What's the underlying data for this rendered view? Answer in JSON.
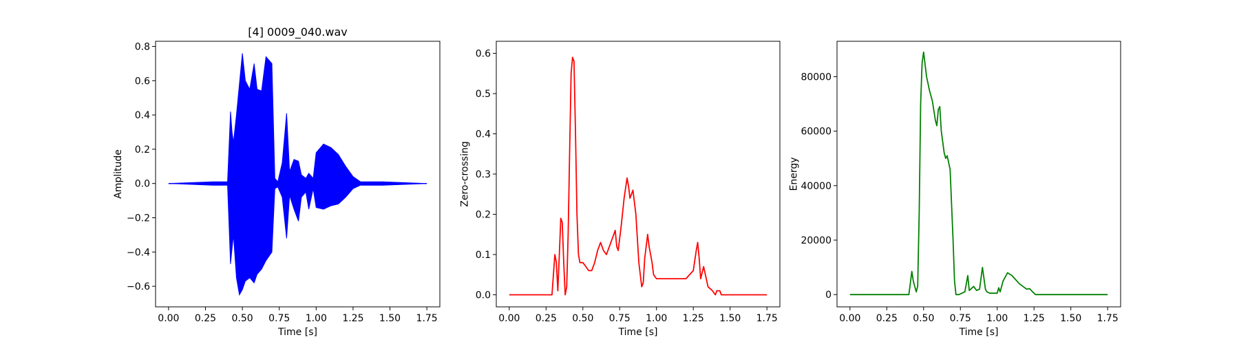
{
  "chart_data": [
    {
      "type": "line",
      "title": "[4] 0009_040.wav",
      "xlabel": "Time [s]",
      "ylabel": "Amplitude",
      "color": "#0000ff",
      "xlim": [
        -0.088,
        1.838
      ],
      "ylim": [
        -0.72,
        0.83
      ],
      "xticks": [
        0.0,
        0.25,
        0.5,
        0.75,
        1.0,
        1.25,
        1.5,
        1.75
      ],
      "xtick_labels": [
        "0.00",
        "0.25",
        "0.50",
        "0.75",
        "1.00",
        "1.25",
        "1.50",
        "1.75"
      ],
      "yticks": [
        -0.6,
        -0.4,
        -0.2,
        0.0,
        0.2,
        0.4,
        0.6,
        0.8
      ],
      "ytick_labels": [
        "−0.6",
        "−0.4",
        "−0.2",
        "0.0",
        "0.2",
        "0.4",
        "0.6",
        "0.8"
      ],
      "series": [
        {
          "style": "waveform-envelope",
          "x": [
            0.0,
            0.3,
            0.4,
            0.42,
            0.43,
            0.44,
            0.46,
            0.48,
            0.5,
            0.52,
            0.55,
            0.58,
            0.6,
            0.63,
            0.66,
            0.7,
            0.72,
            0.74,
            0.77,
            0.8,
            0.82,
            0.85,
            0.88,
            0.9,
            0.93,
            0.95,
            0.98,
            1.0,
            1.05,
            1.1,
            1.15,
            1.2,
            1.25,
            1.3,
            1.35,
            1.45,
            1.75
          ],
          "upper": [
            0.0,
            0.01,
            0.01,
            0.42,
            0.3,
            0.24,
            0.4,
            0.58,
            0.76,
            0.6,
            0.55,
            0.7,
            0.55,
            0.54,
            0.74,
            0.7,
            0.03,
            0.01,
            0.12,
            0.41,
            0.07,
            0.14,
            0.13,
            0.05,
            0.03,
            0.06,
            0.03,
            0.18,
            0.23,
            0.21,
            0.17,
            0.1,
            0.04,
            0.01,
            0.01,
            0.01,
            0.0
          ],
          "lower": [
            0.0,
            -0.01,
            -0.01,
            -0.47,
            -0.38,
            -0.3,
            -0.55,
            -0.65,
            -0.62,
            -0.57,
            -0.55,
            -0.58,
            -0.53,
            -0.5,
            -0.45,
            -0.4,
            -0.03,
            -0.02,
            -0.08,
            -0.32,
            -0.07,
            -0.15,
            -0.22,
            -0.08,
            -0.05,
            -0.15,
            -0.03,
            -0.14,
            -0.15,
            -0.13,
            -0.12,
            -0.08,
            -0.03,
            -0.01,
            -0.01,
            -0.01,
            0.0
          ]
        }
      ]
    },
    {
      "type": "line",
      "title": "",
      "xlabel": "Time [s]",
      "ylabel": "Zero-crossing",
      "color": "#ff0000",
      "xlim": [
        -0.088,
        1.838
      ],
      "ylim": [
        -0.03,
        0.63
      ],
      "xticks": [
        0.0,
        0.25,
        0.5,
        0.75,
        1.0,
        1.25,
        1.5,
        1.75
      ],
      "xtick_labels": [
        "0.00",
        "0.25",
        "0.50",
        "0.75",
        "1.00",
        "1.25",
        "1.50",
        "1.75"
      ],
      "yticks": [
        0.0,
        0.1,
        0.2,
        0.3,
        0.4,
        0.5,
        0.6
      ],
      "ytick_labels": [
        "0.0",
        "0.1",
        "0.2",
        "0.3",
        "0.4",
        "0.5",
        "0.6"
      ],
      "series": [
        {
          "x": [
            0.0,
            0.29,
            0.3,
            0.31,
            0.32,
            0.33,
            0.34,
            0.35,
            0.36,
            0.37,
            0.38,
            0.39,
            0.4,
            0.41,
            0.42,
            0.43,
            0.44,
            0.45,
            0.46,
            0.47,
            0.48,
            0.5,
            0.52,
            0.54,
            0.56,
            0.58,
            0.6,
            0.62,
            0.64,
            0.66,
            0.68,
            0.7,
            0.72,
            0.73,
            0.74,
            0.76,
            0.78,
            0.8,
            0.81,
            0.82,
            0.84,
            0.86,
            0.88,
            0.9,
            0.91,
            0.92,
            0.94,
            0.95,
            0.96,
            0.97,
            0.98,
            1.0,
            1.05,
            1.1,
            1.15,
            1.2,
            1.25,
            1.27,
            1.28,
            1.29,
            1.3,
            1.32,
            1.35,
            1.38,
            1.4,
            1.41,
            1.42,
            1.43,
            1.44,
            1.75
          ],
          "y": [
            0.0,
            0.0,
            0.05,
            0.1,
            0.08,
            0.01,
            0.1,
            0.19,
            0.18,
            0.08,
            0.0,
            0.02,
            0.15,
            0.35,
            0.55,
            0.59,
            0.58,
            0.4,
            0.2,
            0.1,
            0.08,
            0.08,
            0.07,
            0.06,
            0.06,
            0.08,
            0.11,
            0.13,
            0.11,
            0.1,
            0.12,
            0.14,
            0.16,
            0.12,
            0.11,
            0.17,
            0.24,
            0.29,
            0.27,
            0.24,
            0.26,
            0.2,
            0.08,
            0.02,
            0.03,
            0.09,
            0.15,
            0.12,
            0.1,
            0.08,
            0.05,
            0.04,
            0.04,
            0.04,
            0.04,
            0.04,
            0.06,
            0.11,
            0.13,
            0.09,
            0.04,
            0.07,
            0.02,
            0.01,
            0.0,
            0.01,
            0.01,
            0.01,
            0.0,
            0.0
          ]
        }
      ]
    },
    {
      "type": "line",
      "title": "",
      "xlabel": "Time [s]",
      "ylabel": "Energy",
      "color": "#008000",
      "xlim": [
        -0.088,
        1.838
      ],
      "ylim": [
        -4500,
        93000
      ],
      "xticks": [
        0.0,
        0.25,
        0.5,
        0.75,
        1.0,
        1.25,
        1.5,
        1.75
      ],
      "xtick_labels": [
        "0.00",
        "0.25",
        "0.50",
        "0.75",
        "1.00",
        "1.25",
        "1.50",
        "1.75"
      ],
      "yticks": [
        0,
        20000,
        40000,
        60000,
        80000
      ],
      "ytick_labels": [
        "0",
        "20000",
        "40000",
        "60000",
        "80000"
      ],
      "series": [
        {
          "x": [
            0.0,
            0.4,
            0.42,
            0.43,
            0.45,
            0.46,
            0.47,
            0.48,
            0.49,
            0.5,
            0.52,
            0.54,
            0.56,
            0.58,
            0.59,
            0.6,
            0.61,
            0.62,
            0.64,
            0.65,
            0.66,
            0.68,
            0.7,
            0.71,
            0.72,
            0.74,
            0.78,
            0.8,
            0.81,
            0.82,
            0.84,
            0.86,
            0.88,
            0.9,
            0.92,
            0.93,
            0.95,
            1.0,
            1.01,
            1.02,
            1.04,
            1.07,
            1.1,
            1.15,
            1.2,
            1.22,
            1.24,
            1.26,
            1.3,
            1.75
          ],
          "y": [
            0,
            0,
            8500,
            5000,
            1000,
            3000,
            30000,
            70000,
            85000,
            89000,
            80000,
            75000,
            71000,
            64000,
            62000,
            68000,
            69000,
            60000,
            52000,
            50000,
            51000,
            46000,
            20000,
            5000,
            0,
            0,
            1000,
            7000,
            1500,
            2000,
            3000,
            1500,
            2000,
            10000,
            2000,
            1000,
            500,
            500,
            2500,
            1000,
            5000,
            8000,
            7000,
            4000,
            2000,
            2200,
            1000,
            0,
            0,
            0
          ]
        }
      ]
    }
  ]
}
